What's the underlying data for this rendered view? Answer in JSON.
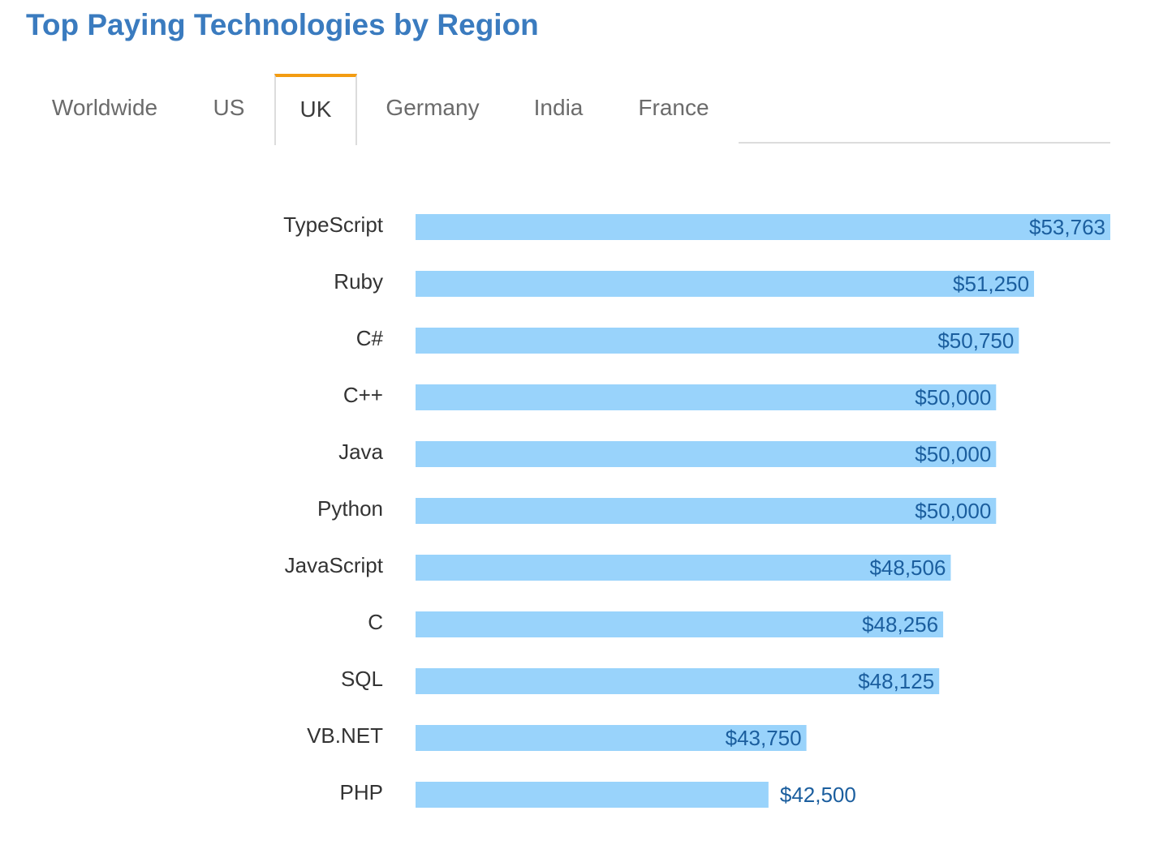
{
  "page": {
    "title": "Top Paying Technologies by Region"
  },
  "tabs": [
    {
      "label": "Worldwide",
      "active": false
    },
    {
      "label": "US",
      "active": false
    },
    {
      "label": "UK",
      "active": true
    },
    {
      "label": "Germany",
      "active": false
    },
    {
      "label": "India",
      "active": false
    },
    {
      "label": "France",
      "active": false
    }
  ],
  "colors": {
    "title": "#3a7bbf",
    "bar": "#99d3fb",
    "value_text": "#1b5e9e",
    "active_tab_accent": "#f39c12",
    "tab_text": "#6b6b6b",
    "category_text": "#333333"
  },
  "chart_data": {
    "type": "bar",
    "orientation": "horizontal",
    "categories": [
      "TypeScript",
      "Ruby",
      "C#",
      "C++",
      "Java",
      "Python",
      "JavaScript",
      "C",
      "SQL",
      "VB.NET",
      "PHP"
    ],
    "values": [
      53763,
      51250,
      50750,
      50000,
      50000,
      50000,
      48506,
      48256,
      48125,
      43750,
      42500
    ],
    "value_labels": [
      "$53,763",
      "$51,250",
      "$50,750",
      "$50,000",
      "$50,000",
      "$50,000",
      "$48,506",
      "$48,256",
      "$48,125",
      "$43,750",
      "$42,500"
    ],
    "title": "",
    "xlabel": "",
    "ylabel": "",
    "xlim": [
      0,
      53763
    ],
    "grid": false,
    "legend": "none"
  }
}
